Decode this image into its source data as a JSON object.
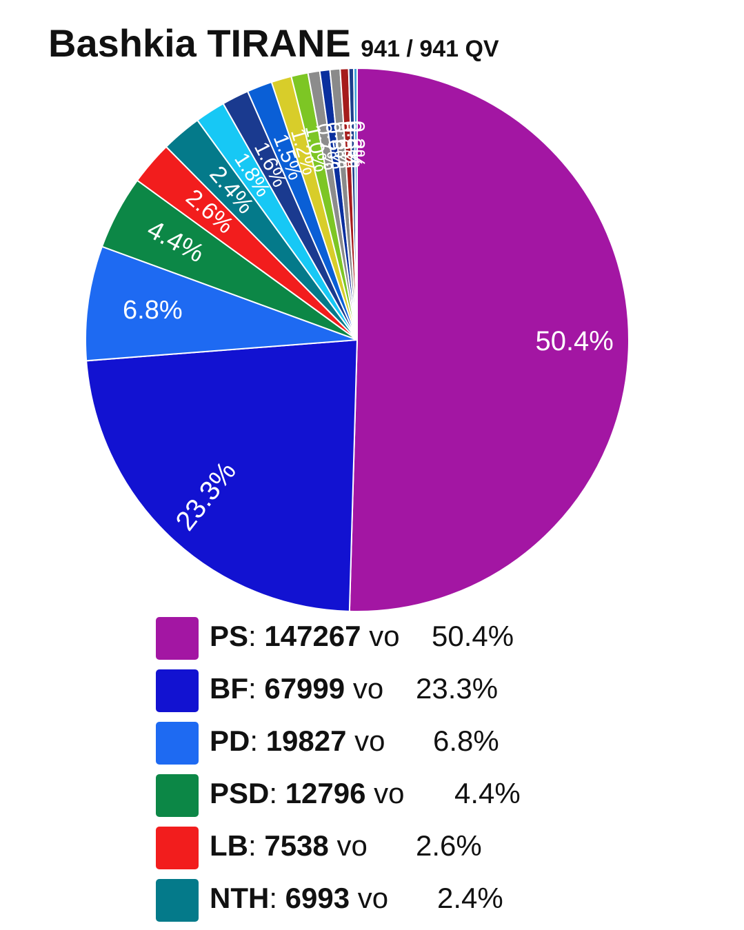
{
  "header": {
    "title": "Bashkia TIRANE",
    "subtitle": "941 / 941 QV"
  },
  "chart_data": {
    "type": "pie",
    "title": "Bashkia TIRANE",
    "subtitle": "941 / 941 QV",
    "start": "12 o'clock, clockwise",
    "slices": [
      {
        "label": "PS",
        "value": 50.4,
        "votes": 147267,
        "color": "#A316A3",
        "text": "50.4%"
      },
      {
        "label": "BF",
        "value": 23.3,
        "votes": 67999,
        "color": "#1212D1",
        "text": "23.3%"
      },
      {
        "label": "PD",
        "value": 6.8,
        "votes": 19827,
        "color": "#1E6AF2",
        "text": "6.8%"
      },
      {
        "label": "PSD",
        "value": 4.4,
        "votes": 12796,
        "color": "#0C8746",
        "text": "4.4%"
      },
      {
        "label": "LB",
        "value": 2.6,
        "votes": 7538,
        "color": "#F21D1D",
        "text": "2.6%"
      },
      {
        "label": "NTH",
        "value": 2.4,
        "votes": 6993,
        "color": "#047A8A",
        "text": "2.4%"
      },
      {
        "value": 1.8,
        "color": "#17C8F5",
        "text": "1.8%"
      },
      {
        "value": 1.6,
        "color": "#1A3A8F",
        "text": "1.6%"
      },
      {
        "value": 1.5,
        "color": "#0A5FD6",
        "text": "1.5%"
      },
      {
        "value": 1.2,
        "color": "#D8CD2A",
        "text": "1.2%"
      },
      {
        "value": 1.0,
        "color": "#7DC624",
        "text": "1.0%"
      },
      {
        "value": 0.7,
        "color": "#8C8C8C",
        "text": "0.7%"
      },
      {
        "value": 0.6,
        "color": "#0A2F9E",
        "text": "0.6%"
      },
      {
        "value": 0.6,
        "color": "#8A8A8A",
        "text": "0.6%"
      },
      {
        "value": 0.5,
        "color": "#A51C1C",
        "text": "0.5%"
      },
      {
        "value": 0.3,
        "color": "#1D3F8C",
        "text": "0.3%"
      },
      {
        "value": 0.2,
        "color": "#3AA0D8",
        "text": "0.2%"
      }
    ],
    "legend": [
      {
        "party": "PS",
        "votes": "147267",
        "unit": "vo",
        "pct": "50.4%",
        "color": "#A316A3"
      },
      {
        "party": "BF",
        "votes": "67999",
        "unit": "vo",
        "pct": "23.3%",
        "color": "#1212D1"
      },
      {
        "party": "PD",
        "votes": "19827",
        "unit": "vo",
        "pct": "6.8%",
        "color": "#1E6AF2"
      },
      {
        "party": "PSD",
        "votes": "12796",
        "unit": "vo",
        "pct": "4.4%",
        "color": "#0C8746"
      },
      {
        "party": "LB",
        "votes": "7538",
        "unit": "vo",
        "pct": "2.6%",
        "color": "#F21D1D"
      },
      {
        "party": "NTH",
        "votes": "6993",
        "unit": "vo",
        "pct": "2.4%",
        "color": "#047A8A"
      }
    ]
  }
}
